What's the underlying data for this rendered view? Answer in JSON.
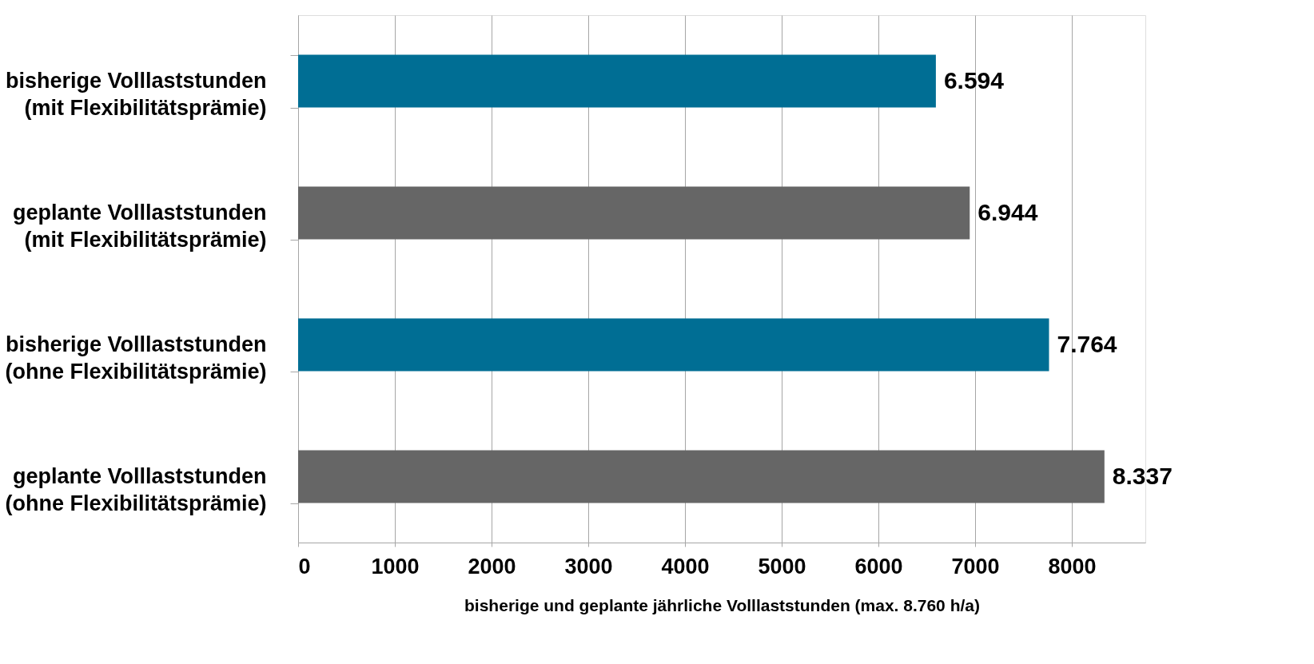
{
  "chart_data": {
    "type": "bar",
    "orientation": "horizontal",
    "xlabel": "bisherige und geplante jährliche Volllaststunden (max. 8.760 h/a)",
    "categories": [
      "bisherige Volllaststunden\n(mit Flexibilitätsprämie)",
      "geplante Volllaststunden\n(mit Flexibilitätsprämie)",
      "bisherige Volllaststunden\n(ohne Flexibilitätsprämie)",
      "geplante Volllaststunden\n(ohne Flexibilitätsprämie)"
    ],
    "values": [
      6594,
      6944,
      7764,
      8337
    ],
    "colors": [
      "#006e94",
      "#666666",
      "#006e94",
      "#666666"
    ],
    "value_labels": [
      "6.594",
      "6.944",
      "7.764",
      "8.337"
    ],
    "xlim": [
      0,
      8760
    ],
    "xticks": [
      0,
      1000,
      2000,
      3000,
      4000,
      5000,
      6000,
      7000,
      8000
    ],
    "grid": "x"
  }
}
